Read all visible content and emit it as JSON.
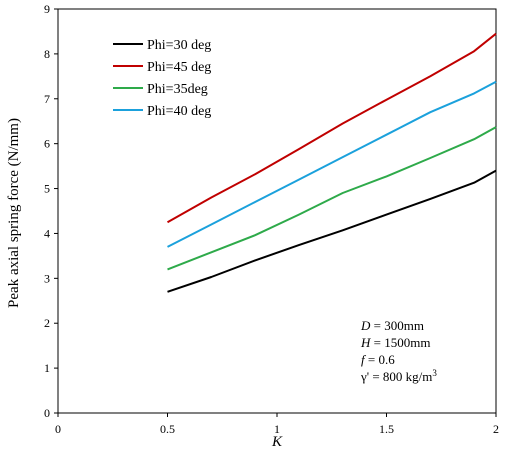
{
  "chart_data": {
    "type": "line",
    "xlabel": "K",
    "ylabel": "Peak axial spring force (N/mm)",
    "xlim": [
      0,
      2
    ],
    "ylim": [
      0,
      9
    ],
    "xticks": [
      "0",
      "0.5",
      "1",
      "1.5",
      "2"
    ],
    "yticks": [
      "0",
      "1",
      "2",
      "3",
      "4",
      "5",
      "6",
      "7",
      "8",
      "9"
    ],
    "grid": false,
    "legend_position": "top-left",
    "series": [
      {
        "name": "Phi=30 deg",
        "color": "#000000",
        "x": [
          0.5,
          0.7,
          0.9,
          1.1,
          1.3,
          1.5,
          1.7,
          1.9,
          2.0
        ],
        "y": [
          2.7,
          3.03,
          3.4,
          3.74,
          4.07,
          4.42,
          4.77,
          5.13,
          5.4
        ]
      },
      {
        "name": "Phi=45 deg",
        "color": "#c00000",
        "x": [
          0.5,
          0.7,
          0.9,
          1.1,
          1.3,
          1.5,
          1.7,
          1.9,
          2.0
        ],
        "y": [
          4.25,
          4.8,
          5.32,
          5.88,
          6.45,
          6.98,
          7.5,
          8.06,
          8.45
        ]
      },
      {
        "name": "Phi=35deg",
        "color": "#2eaa4a",
        "x": [
          0.5,
          0.7,
          0.9,
          1.1,
          1.3,
          1.5,
          1.7,
          1.9,
          2.0
        ],
        "y": [
          3.2,
          3.58,
          3.96,
          4.42,
          4.9,
          5.27,
          5.68,
          6.1,
          6.37
        ]
      },
      {
        "name": "Phi=40 deg",
        "color": "#1ba1dc",
        "x": [
          0.5,
          0.7,
          0.9,
          1.1,
          1.3,
          1.5,
          1.7,
          1.9,
          2.0
        ],
        "y": [
          3.7,
          4.2,
          4.7,
          5.2,
          5.7,
          6.2,
          6.7,
          7.12,
          7.38
        ]
      }
    ],
    "annotations": [
      {
        "id": "D",
        "italic": "D",
        "text": " = 300mm"
      },
      {
        "id": "H",
        "italic": "H",
        "text": " = 1500mm"
      },
      {
        "id": "f",
        "italic": "f",
        "text": " = 0.6"
      },
      {
        "id": "gamma",
        "italic": "",
        "text": "γ' = 800 kg/m",
        "sup": "3"
      }
    ]
  }
}
